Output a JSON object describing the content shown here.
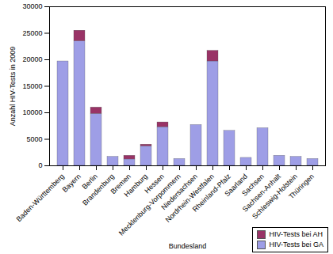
{
  "chart_data": {
    "type": "bar",
    "stacked": true,
    "grid": false,
    "legend": "lower right",
    "ylabel": "Anzahl HIV-Tests in 2009",
    "xlabel": "Bundesland",
    "categories": [
      "Baden-Württemberg",
      "Bayern",
      "Berlin",
      "Brandenburg",
      "Bremen",
      "Hamburg",
      "Hessen",
      "Mecklenburg-Vorpommern",
      "Niedersachsen",
      "Nordrhein-Westfalen",
      "Rheinland-Pfalz",
      "Saarland",
      "Sachsen",
      "Sachsen-Anhalt",
      "Schleswig-Holstein",
      "Thüringen"
    ],
    "series": [
      {
        "name": "HIV-Tests bei GA",
        "color": "#9e9ee6",
        "values": [
          19700,
          23500,
          9800,
          1700,
          1200,
          3700,
          7300,
          1300,
          7700,
          19700,
          6600,
          1500,
          7100,
          1900,
          1700,
          1300
        ]
      },
      {
        "name": "HIV-Tests bei AH",
        "color": "#993366",
        "values": [
          0,
          2000,
          1200,
          0,
          700,
          300,
          900,
          0,
          0,
          2000,
          0,
          0,
          0,
          0,
          0,
          0
        ]
      }
    ],
    "ylim": [
      0,
      30000
    ],
    "yticks": [
      0,
      5000,
      10000,
      15000,
      20000,
      25000,
      30000
    ]
  }
}
